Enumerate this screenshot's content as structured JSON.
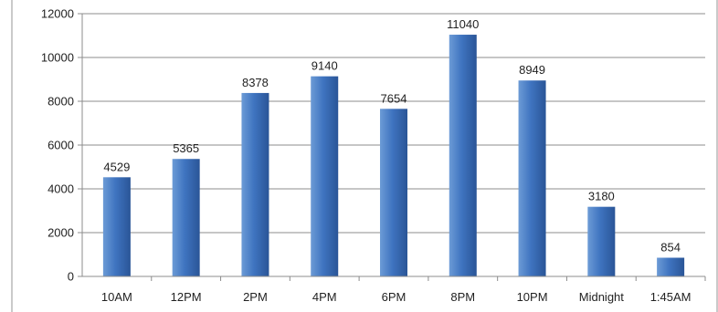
{
  "chart_data": {
    "type": "bar",
    "title": "",
    "xlabel": "",
    "ylabel": "",
    "categories": [
      "10AM",
      "12PM",
      "2PM",
      "4PM",
      "6PM",
      "8PM",
      "10PM",
      "Midnight",
      "1:45AM"
    ],
    "values": [
      4529,
      5365,
      8378,
      9140,
      7654,
      11040,
      8949,
      3180,
      854
    ],
    "value_labels": [
      "4529",
      "5365",
      "8378",
      "9140",
      "7654",
      "11040",
      "8949",
      "3180",
      "854"
    ],
    "ylim": [
      0,
      12000
    ],
    "y_ticks": [
      0,
      2000,
      4000,
      6000,
      8000,
      10000,
      12000
    ],
    "y_tick_labels": [
      "0",
      "2000",
      "4000",
      "6000",
      "8000",
      "10000",
      "12000"
    ],
    "grid": true,
    "legend": false,
    "colors": {
      "bar_light": "#6c9bd6",
      "bar_main": "#3f74c0",
      "bar_dark": "#2a5597",
      "grid": "#8c8c8c",
      "axis": "#8c8c8c",
      "frame": "#a6a6a6",
      "text": "#222222"
    }
  }
}
